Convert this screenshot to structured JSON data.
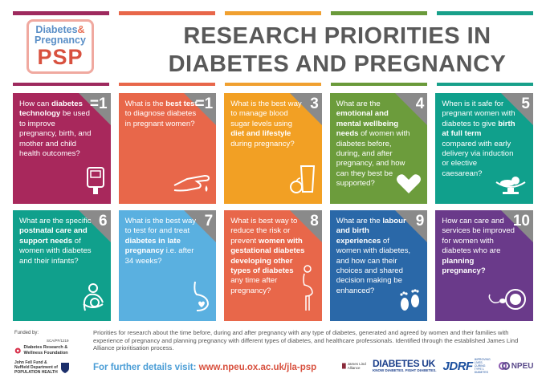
{
  "logo": {
    "line1_word": "Diabetes",
    "line1_amp": "&",
    "line2": "Pregnancy",
    "line3": "PSP"
  },
  "title": {
    "line1": "RESEARCH PRIORITIES IN",
    "line2": "DIABETES AND PREGNANCY"
  },
  "bar_colors": [
    "#9e2a5e",
    "#e8674a",
    "#f0a030",
    "#6a9a3a",
    "#18a08a"
  ],
  "cards": [
    {
      "rank": "=1",
      "color": "#a8285c",
      "icon": "glucose-meter-icon",
      "parts": [
        [
          "How can ",
          false
        ],
        [
          "diabetes technology",
          true
        ],
        [
          " be used to improve pregnancy, birth, and mother and child health outcomes?",
          false
        ]
      ]
    },
    {
      "rank": "=1",
      "color": "#e8674a",
      "icon": "finger-prick-icon",
      "parts": [
        [
          "What is the ",
          false
        ],
        [
          "best test",
          true
        ],
        [
          " to diagnose diabetes in pregnant women?",
          false
        ]
      ]
    },
    {
      "rank": "3",
      "color": "#f2a024",
      "icon": "apple-glass-icon",
      "parts": [
        [
          "What is the best way to manage blood sugar levels using ",
          false
        ],
        [
          "diet and lifestyle",
          true
        ],
        [
          " during pregnancy?",
          false
        ]
      ]
    },
    {
      "rank": "4",
      "color": "#6c9c3c",
      "icon": "heart-hands-icon",
      "parts": [
        [
          "What are the ",
          false
        ],
        [
          "emotional and mental wellbeing needs",
          true
        ],
        [
          " of women with diabetes before, during, and after pregnancy, and how can they best be supported?",
          false
        ]
      ]
    },
    {
      "rank": "5",
      "color": "#10a08c",
      "icon": "baby-scale-icon",
      "parts": [
        [
          "When is it safe for pregnant women with diabetes to give ",
          false
        ],
        [
          "birth at full term",
          true
        ],
        [
          " compared with early delivery via induction or elective caesarean?",
          false
        ]
      ]
    },
    {
      "rank": "6",
      "color": "#10a08c",
      "icon": "breastfeeding-icon",
      "parts": [
        [
          "What are the specific ",
          false
        ],
        [
          "postnatal care and support needs",
          true
        ],
        [
          " of women with diabetes and their infants?",
          false
        ]
      ]
    },
    {
      "rank": "7",
      "color": "#5ab0e0",
      "icon": "pregnant-belly-icon",
      "parts": [
        [
          "What is the best way to test for and treat ",
          false
        ],
        [
          "diabetes in late pregnancy",
          true
        ],
        [
          " i.e. after 34 weeks?",
          false
        ]
      ]
    },
    {
      "rank": "8",
      "color": "#e8674a",
      "icon": "pregnant-woman-icon",
      "parts": [
        [
          "What is best way to reduce the risk or prevent ",
          false
        ],
        [
          "women with gestational diabetes developing other types of diabetes",
          true
        ],
        [
          " any time after pregnancy?",
          false
        ]
      ]
    },
    {
      "rank": "9",
      "color": "#2a68a8",
      "icon": "baby-feet-icon",
      "parts": [
        [
          "What are the ",
          false
        ],
        [
          "labour and birth experiences",
          true
        ],
        [
          " of women with diabetes, and how can their choices and shared decision making be enhanced?",
          false
        ]
      ]
    },
    {
      "rank": "10",
      "color": "#6a3a8a",
      "icon": "sperm-egg-icon",
      "parts": [
        [
          "How can care and services be improved for women with diabetes who are ",
          false
        ],
        [
          "planning pregnancy?",
          true
        ]
      ]
    }
  ],
  "corner_color": "#8a8a8a",
  "footer": {
    "funded_by": "Funded by:",
    "ref": "SCA/PF/1219",
    "funder1": "Diabetes Research & Wellness Foundation",
    "funder2_line1": "John Fell Fund &",
    "funder2_line2": "Nuffield Department of",
    "funder2_line3": "POPULATION HEALTH",
    "description": "Priorities for research about the time before, during and after pregnancy with any type of diabetes, generated and agreed by women and their families with experience of pregnancy and planning pregnancy with different types of diabetes, and healthcare professionals. Identified through the established James Lind Alliance prioritisation process.",
    "details_label": "For further details visit: ",
    "details_url": "www.npeu.ox.ac.uk/jla-psp"
  },
  "partners": {
    "jla": "James Lind Alliance",
    "duk": "DIABETES UK",
    "duk_tag": "KNOW DIABETES. FIGHT DIABETES.",
    "jdrf": "JDRF",
    "jdrf_tag": "IMPROVING LIVES. CURING TYPE 1 DIABETES",
    "npeu": "NPEU"
  }
}
